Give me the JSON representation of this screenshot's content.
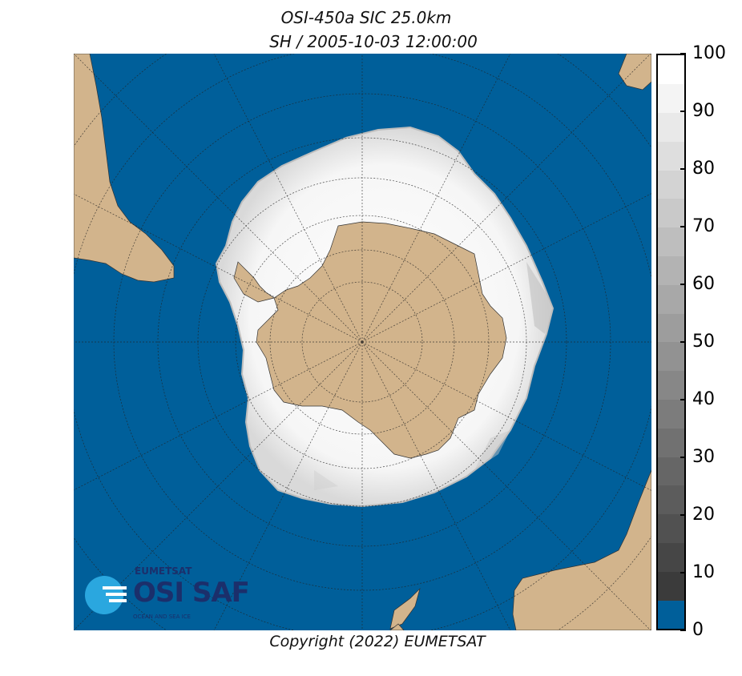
{
  "title_line1": "OSI-450a SIC 25.0km",
  "title_line2": "SH / 2005-10-03 12:00:00",
  "copyright": "Copyright (2022)  EUMETSAT",
  "logo": {
    "org": "EUMETSAT",
    "name": "OSI SAF",
    "tagline": "OCEAN AND SEA ICE"
  },
  "colorbar": {
    "ticks": [
      "100",
      "90",
      "80",
      "70",
      "60",
      "50",
      "40",
      "30",
      "20",
      "10",
      "0"
    ],
    "colors": {
      "ocean": "#005f9a",
      "land": "#d2b48c",
      "ice_full": "#ffffff"
    }
  },
  "chart_data": {
    "type": "heatmap",
    "title": "OSI-450a SIC 25.0km",
    "subtitle": "SH / 2005-10-03 12:00:00",
    "projection": "south-polar-stereographic",
    "colorbar_range": [
      0,
      100
    ],
    "colorbar_steps": 20
  }
}
